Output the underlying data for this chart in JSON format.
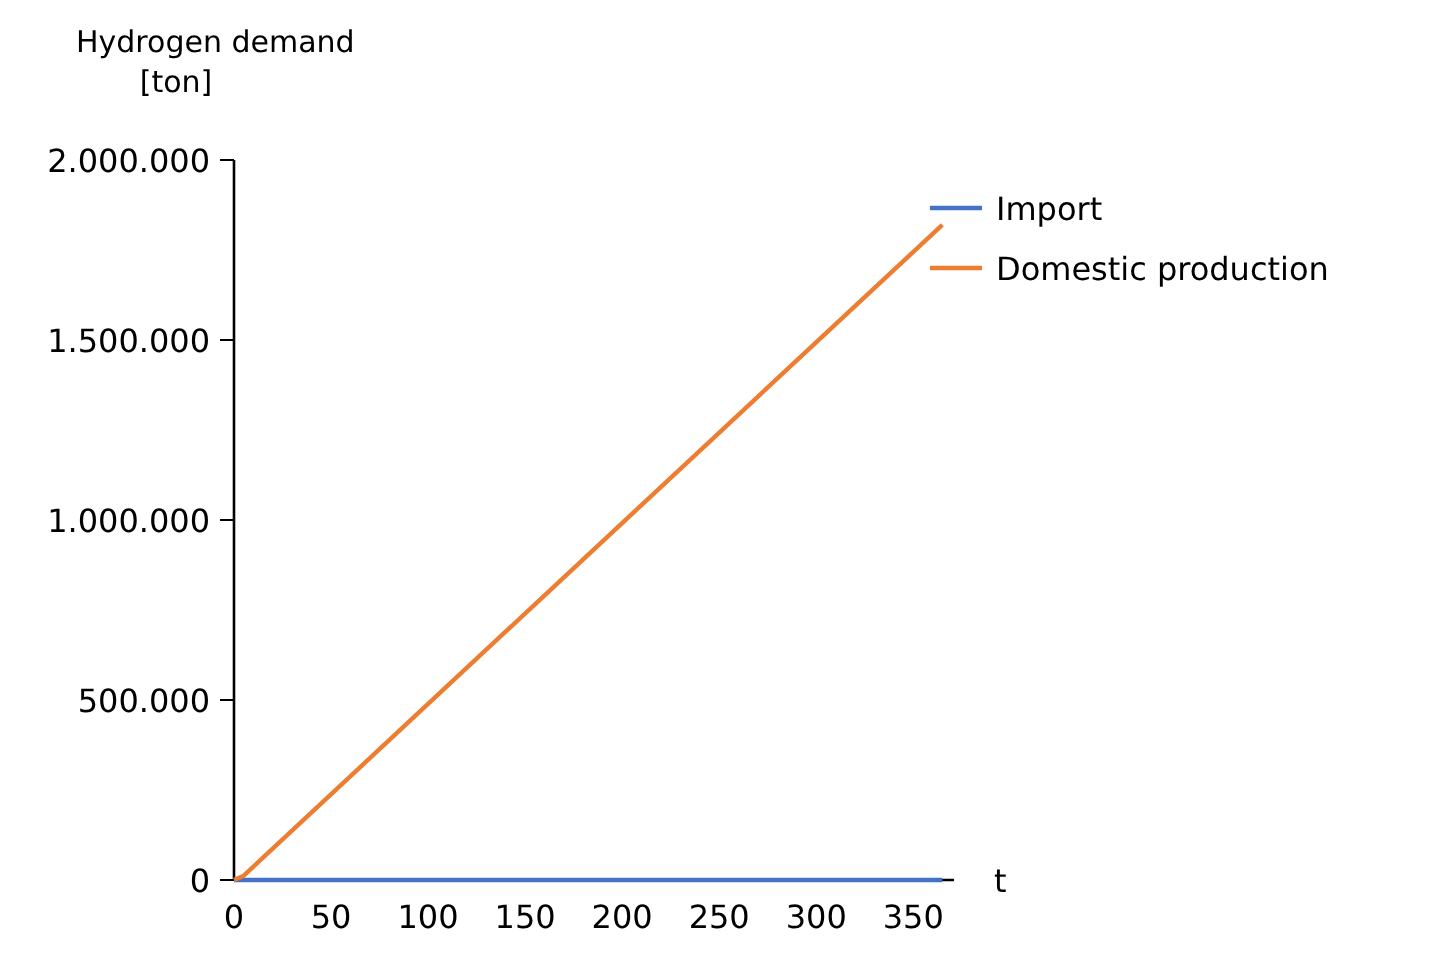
{
  "chart_data": {
    "type": "line",
    "xlabel": "t",
    "ylabel": "Hydrogen demand\n[ton]",
    "series": [
      {
        "name": "Import",
        "color": "#4472c4",
        "x": [
          0,
          365
        ],
        "values": [
          0,
          0
        ]
      },
      {
        "name": "Domestic production",
        "color": "#ed7d31",
        "x": [
          0,
          5,
          365
        ],
        "values": [
          0,
          12000,
          1820000
        ]
      }
    ],
    "xlim": [
      0,
      371
    ],
    "xticks": [
      0,
      50,
      100,
      150,
      200,
      250,
      300,
      350
    ],
    "ylim": [
      0,
      2000000
    ],
    "yticks": [
      {
        "value": 0,
        "label": "0"
      },
      {
        "value": 500000,
        "label": "500.000"
      },
      {
        "value": 1000000,
        "label": "1.000.000"
      },
      {
        "value": 1500000,
        "label": "1.500.000"
      },
      {
        "value": 2000000,
        "label": "2.000.000"
      }
    ],
    "grid": false,
    "legend": "top right",
    "line_style": "solid",
    "marker": "none"
  }
}
